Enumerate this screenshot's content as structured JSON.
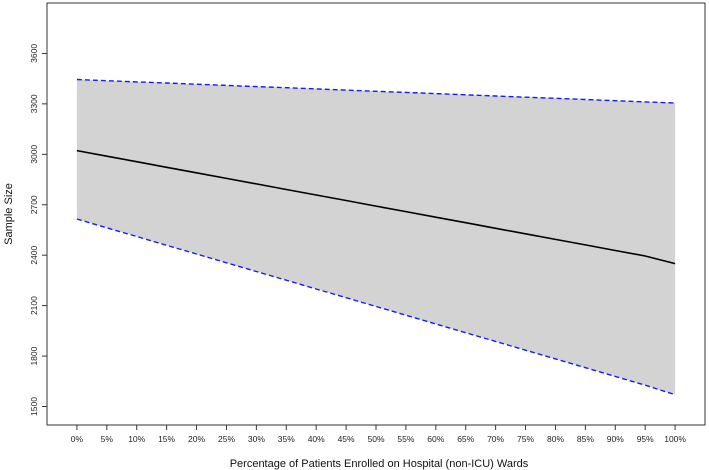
{
  "chart_data": {
    "type": "line",
    "title": "",
    "xlabel": "Percentage of Patients Enrolled on Hospital (non-ICU) Wards",
    "ylabel": "Sample Size",
    "x": [
      0,
      5,
      10,
      15,
      20,
      25,
      30,
      35,
      40,
      45,
      50,
      55,
      60,
      65,
      70,
      75,
      80,
      85,
      90,
      95,
      100
    ],
    "x_tick_labels": [
      "0%",
      "5%",
      "10%",
      "15%",
      "20%",
      "25%",
      "30%",
      "35%",
      "40%",
      "45%",
      "50%",
      "55%",
      "60%",
      "65%",
      "70%",
      "75%",
      "80%",
      "85%",
      "90%",
      "95%",
      "100%"
    ],
    "y_ticks": [
      1500,
      1800,
      2100,
      2400,
      2700,
      3000,
      3300,
      3600
    ],
    "ylim": [
      1390,
      3900
    ],
    "xlim": [
      -5,
      105
    ],
    "grid": false,
    "series": [
      {
        "role": "upper",
        "style": "dashed",
        "color": "#1a1aff",
        "values": [
          3445,
          3438,
          3431,
          3424,
          3417,
          3410,
          3403,
          3396,
          3389,
          3382,
          3375,
          3368,
          3361,
          3354,
          3347,
          3340,
          3333,
          3326,
          3319,
          3312,
          3305
        ]
      },
      {
        "role": "central",
        "style": "solid",
        "color": "#000000",
        "values": [
          3022,
          2989,
          2956,
          2923,
          2890,
          2857,
          2824,
          2791,
          2758,
          2725,
          2692,
          2659,
          2626,
          2593,
          2560,
          2527,
          2494,
          2461,
          2428,
          2395,
          2350
        ]
      },
      {
        "role": "lower",
        "style": "dashed",
        "color": "#1a1aff",
        "values": [
          2615,
          2563,
          2511,
          2459,
          2407,
          2355,
          2303,
          2251,
          2199,
          2147,
          2095,
          2043,
          1991,
          1939,
          1887,
          1835,
          1783,
          1731,
          1679,
          1627,
          1570
        ]
      }
    ],
    "band_color": "#d3d3d3"
  }
}
